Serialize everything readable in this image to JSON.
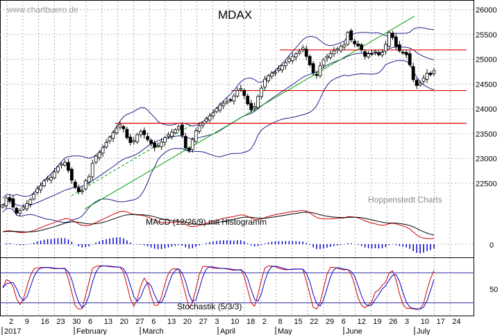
{
  "watermark": "www.chartbuero.de",
  "source": "Hoppenstedt Charts",
  "chart_data": [
    {
      "type": "candlestick",
      "title": "MDAX",
      "y_ticks": [
        26000,
        25500,
        25000,
        24500,
        24000,
        23500,
        23000,
        22500
      ],
      "ylim": [
        21850,
        26120
      ],
      "bollinger_bands": true,
      "support_resistance_levels": [
        25190,
        24370,
        23710
      ],
      "trendlines": [
        {
          "style": "solid",
          "color": "#00a000",
          "from": [
            "2017-02-03",
            21980
          ],
          "to": [
            "2017-06-30",
            25870
          ]
        },
        {
          "style": "dashed",
          "color": "#00a000",
          "from": [
            "2017-02-01",
            22250
          ],
          "to": [
            "2017-03-21",
            23710
          ]
        }
      ],
      "close": [
        22060,
        22200,
        22150,
        22020,
        21900,
        21950,
        22020,
        22090,
        22170,
        22280,
        22390,
        22450,
        22550,
        22600,
        22620,
        22730,
        22830,
        22890,
        22920,
        22760,
        22560,
        22420,
        22330,
        22350,
        22550,
        22630,
        22900,
        23050,
        23120,
        23220,
        23320,
        23430,
        23520,
        23610,
        23680,
        23600,
        23420,
        23320,
        23360,
        23480,
        23540,
        23480,
        23380,
        23300,
        23220,
        23260,
        23330,
        23420,
        23480,
        23530,
        23580,
        23640,
        23470,
        23210,
        23160,
        23380,
        23560,
        23660,
        23710,
        23800,
        23860,
        23920,
        24010,
        24080,
        24110,
        24150,
        24180,
        24260,
        24370,
        24410,
        24270,
        24100,
        23980,
        24050,
        24250,
        24420,
        24600,
        24670,
        24720,
        24740,
        24810,
        24870,
        24930,
        25010,
        25060,
        25110,
        25160,
        25230,
        25060,
        24890,
        24730,
        24680,
        24870,
        24990,
        25060,
        25110,
        25170,
        25210,
        25260,
        25290,
        25540,
        25390,
        25310,
        25270,
        25190,
        25060,
        25110,
        25110,
        25160,
        25090,
        25140,
        25300,
        25540,
        25440,
        25260,
        25170,
        25140,
        25090,
        24890,
        24590,
        24470,
        24520,
        24620,
        24720,
        24690,
        24770
      ]
    },
    {
      "type": "line",
      "title": "MACD (12/26/9) mit Histogramm",
      "y_ticks": [
        0
      ],
      "series": [
        {
          "color": "#cc0000"
        },
        {
          "color": "#000000"
        },
        {
          "color": "#0000cc"
        }
      ]
    },
    {
      "type": "line",
      "title": "Stochastik (5/3/3)",
      "y_ticks": [
        50
      ],
      "ylim": [
        0,
        100
      ],
      "reference_lines": [
        80,
        20
      ],
      "series": [
        {
          "color": "#cc0000"
        },
        {
          "color": "#0000cc"
        }
      ]
    }
  ],
  "x_axis": {
    "day_labels": [
      "2",
      "9",
      "16",
      "23",
      "30",
      "6",
      "13",
      "20",
      "27",
      "6",
      "13",
      "20",
      "27",
      "3",
      "10",
      "18",
      "2",
      "8",
      "15",
      "22",
      "29",
      "6",
      "12",
      "19",
      "26",
      "3",
      "10",
      "17",
      "24"
    ],
    "month_labels": [
      "2017",
      "February",
      "March",
      "April",
      "May",
      "June",
      "July"
    ]
  }
}
